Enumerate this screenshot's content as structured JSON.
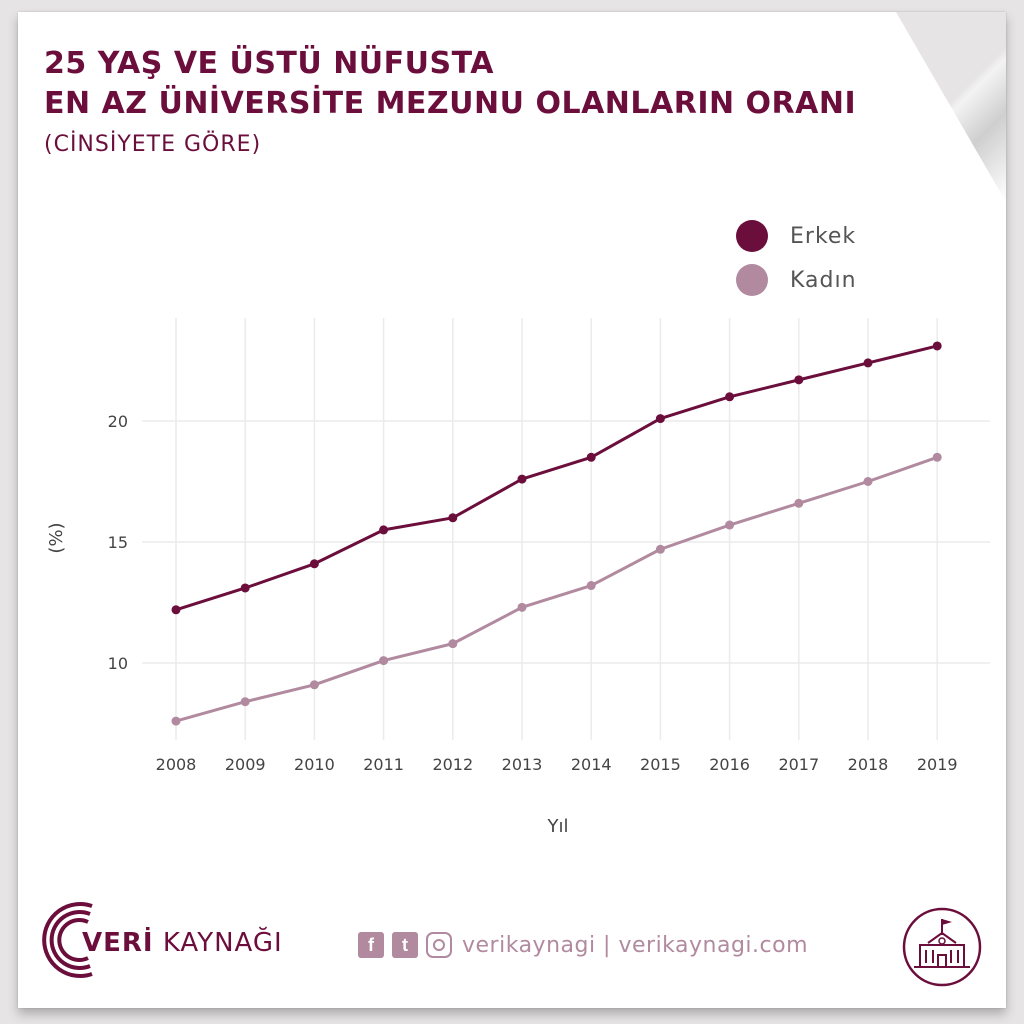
{
  "header": {
    "title_line1": "25 YAŞ VE ÜSTÜ NÜFUSTA",
    "title_line2": "EN AZ ÜNİVERSİTE MEZUNU OLANLARIN ORANI",
    "subtitle": "(CİNSİYETE GÖRE)"
  },
  "legend": [
    {
      "label": "Erkek",
      "color": "#6b0e3c"
    },
    {
      "label": "Kadın",
      "color": "#b18a9f"
    }
  ],
  "chart_data": {
    "type": "line",
    "x": [
      2008,
      2009,
      2010,
      2011,
      2012,
      2013,
      2014,
      2015,
      2016,
      2017,
      2018,
      2019
    ],
    "series": [
      {
        "name": "Erkek",
        "color": "#6b0e3c",
        "values": [
          12.2,
          13.1,
          14.1,
          15.5,
          16.0,
          17.6,
          18.5,
          20.1,
          21.0,
          21.7,
          22.4,
          23.1
        ]
      },
      {
        "name": "Kadın",
        "color": "#b18a9f",
        "values": [
          7.6,
          8.4,
          9.1,
          10.1,
          10.8,
          12.3,
          13.2,
          14.7,
          15.7,
          16.6,
          17.5,
          18.5
        ]
      }
    ],
    "xlabel": "Yıl",
    "ylabel": "(%)",
    "yticks": [
      10,
      15,
      20
    ],
    "ylim": [
      6.5,
      24.3
    ],
    "grid": true,
    "legend_position": "top-right"
  },
  "footer": {
    "brand_part1": "VERİ",
    "brand_part2": " KAYNAĞI",
    "social_text": "verikaynagi | verikaynagi.com",
    "facebook_glyph": "f",
    "twitter_glyph": "t"
  }
}
